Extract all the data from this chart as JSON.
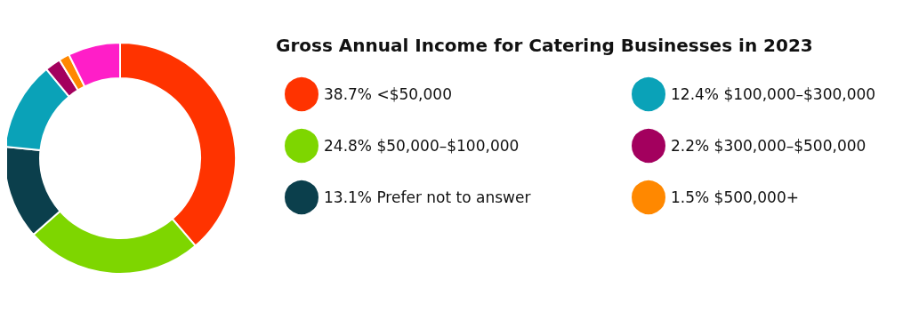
{
  "chart_data": {
    "type": "donut",
    "title": "Gross Annual Income for Catering Businesses in 2023",
    "categories": [
      "<$50,000",
      "$50,000–$100,000",
      "Prefer not to answer",
      "$100,000–$300,000",
      "$300,000–$500,000",
      "$500,000+",
      null
    ],
    "values": [
      38.7,
      24.8,
      13.1,
      12.4,
      2.2,
      1.5,
      7.3
    ],
    "colors": [
      "#ff3300",
      "#7ed600",
      "#0b3f4c",
      "#0aa2b8",
      "#a3005e",
      "#ff8800",
      "#ff1ec8"
    ],
    "value_labels": [
      "38.7%",
      "24.8%",
      "13.1%",
      "12.4%",
      "2.2%",
      "1.5%",
      null
    ],
    "legend": "right"
  }
}
